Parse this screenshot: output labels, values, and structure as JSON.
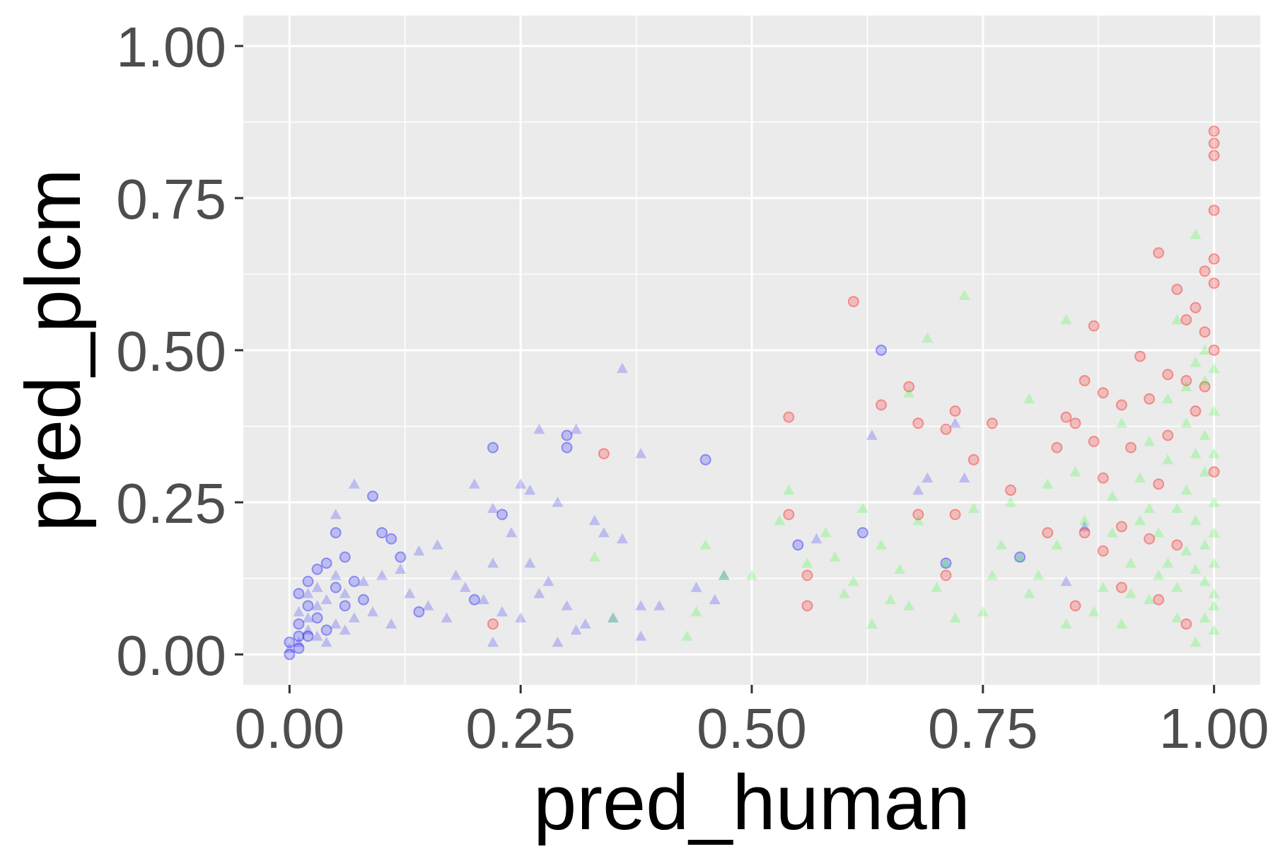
{
  "chart_data": {
    "type": "scatter",
    "title": "",
    "xlabel": "pred_human",
    "ylabel": "pred_plcm",
    "xlim": [
      -0.05,
      1.05
    ],
    "ylim": [
      -0.05,
      1.05
    ],
    "x_ticks": [
      0,
      0.25,
      0.5,
      0.75,
      1
    ],
    "y_ticks": [
      0,
      0.25,
      0.5,
      0.75,
      1
    ],
    "x_tick_labels": [
      "0.00",
      "0.25",
      "0.50",
      "0.75",
      "1.00"
    ],
    "y_tick_labels": [
      "0.00",
      "0.25",
      "0.50",
      "0.75",
      "1.00"
    ],
    "grid": true,
    "legend": "none",
    "series": [
      {
        "marker": "circle",
        "color": "#0000ff",
        "points": [
          [
            0.09,
            0.26
          ],
          [
            0.22,
            0.34
          ],
          [
            0.23,
            0.23
          ],
          [
            0.3,
            0.36
          ],
          [
            0.3,
            0.34
          ],
          [
            0.12,
            0.16
          ],
          [
            0.1,
            0.2
          ],
          [
            0.06,
            0.16
          ],
          [
            0.05,
            0.2
          ],
          [
            0.45,
            0.32
          ],
          [
            0.55,
            0.18
          ],
          [
            0.62,
            0.2
          ],
          [
            0.64,
            0.5
          ],
          [
            0.71,
            0.15
          ],
          [
            0.79,
            0.16
          ],
          [
            0.2,
            0.09
          ],
          [
            0.14,
            0.07
          ],
          [
            0.08,
            0.09
          ],
          [
            0.03,
            0.14
          ],
          [
            0.04,
            0.15
          ],
          [
            0.02,
            0.12
          ],
          [
            0.01,
            0.1
          ],
          [
            0.05,
            0.11
          ],
          [
            0.06,
            0.08
          ],
          [
            0.03,
            0.06
          ],
          [
            0.01,
            0.05
          ],
          [
            0.02,
            0.03
          ],
          [
            0.0,
            0.02
          ],
          [
            0.01,
            0.01
          ],
          [
            0.0,
            0.0
          ],
          [
            0.02,
            0.08
          ],
          [
            0.04,
            0.04
          ],
          [
            0.01,
            0.03
          ],
          [
            0.07,
            0.12
          ],
          [
            0.11,
            0.19
          ]
        ]
      },
      {
        "marker": "triangle",
        "color": "#0000ff",
        "points": [
          [
            0.07,
            0.28
          ],
          [
            0.05,
            0.23
          ],
          [
            0.36,
            0.47
          ],
          [
            0.27,
            0.37
          ],
          [
            0.31,
            0.37
          ],
          [
            0.38,
            0.33
          ],
          [
            0.25,
            0.28
          ],
          [
            0.26,
            0.27
          ],
          [
            0.2,
            0.28
          ],
          [
            0.22,
            0.24
          ],
          [
            0.34,
            0.2
          ],
          [
            0.29,
            0.25
          ],
          [
            0.16,
            0.18
          ],
          [
            0.14,
            0.17
          ],
          [
            0.12,
            0.14
          ],
          [
            0.18,
            0.13
          ],
          [
            0.22,
            0.15
          ],
          [
            0.26,
            0.15
          ],
          [
            0.24,
            0.2
          ],
          [
            0.33,
            0.22
          ],
          [
            0.36,
            0.19
          ],
          [
            0.27,
            0.1
          ],
          [
            0.3,
            0.08
          ],
          [
            0.32,
            0.05
          ],
          [
            0.25,
            0.06
          ],
          [
            0.29,
            0.02
          ],
          [
            0.22,
            0.02
          ],
          [
            0.31,
            0.04
          ],
          [
            0.35,
            0.06
          ],
          [
            0.38,
            0.03
          ],
          [
            0.4,
            0.08
          ],
          [
            0.44,
            0.11
          ],
          [
            0.47,
            0.13
          ],
          [
            0.46,
            0.09
          ],
          [
            0.38,
            0.08
          ],
          [
            0.72,
            0.38
          ],
          [
            0.73,
            0.29
          ],
          [
            0.68,
            0.27
          ],
          [
            0.63,
            0.36
          ],
          [
            0.69,
            0.29
          ],
          [
            0.84,
            0.12
          ],
          [
            0.86,
            0.21
          ],
          [
            0.57,
            0.19
          ],
          [
            0.15,
            0.08
          ],
          [
            0.11,
            0.05
          ],
          [
            0.09,
            0.07
          ],
          [
            0.07,
            0.06
          ],
          [
            0.05,
            0.05
          ],
          [
            0.03,
            0.08
          ],
          [
            0.02,
            0.06
          ],
          [
            0.04,
            0.09
          ],
          [
            0.06,
            0.1
          ],
          [
            0.08,
            0.12
          ],
          [
            0.1,
            0.13
          ],
          [
            0.13,
            0.1
          ],
          [
            0.17,
            0.06
          ],
          [
            0.19,
            0.11
          ],
          [
            0.21,
            0.09
          ],
          [
            0.23,
            0.07
          ],
          [
            0.28,
            0.12
          ],
          [
            0.01,
            0.02
          ],
          [
            0.02,
            0.04
          ],
          [
            0.0,
            0.01
          ],
          [
            0.03,
            0.03
          ],
          [
            0.01,
            0.07
          ],
          [
            0.04,
            0.02
          ],
          [
            0.06,
            0.04
          ],
          [
            0.02,
            0.1
          ],
          [
            0.05,
            0.13
          ],
          [
            0.03,
            0.11
          ]
        ]
      },
      {
        "marker": "circle",
        "color": "#ff0000",
        "points": [
          [
            1.0,
            0.86
          ],
          [
            1.0,
            0.84
          ],
          [
            1.0,
            0.82
          ],
          [
            1.0,
            0.73
          ],
          [
            0.94,
            0.66
          ],
          [
            1.0,
            0.65
          ],
          [
            0.99,
            0.63
          ],
          [
            1.0,
            0.61
          ],
          [
            0.96,
            0.6
          ],
          [
            0.98,
            0.57
          ],
          [
            0.97,
            0.55
          ],
          [
            0.99,
            0.53
          ],
          [
            0.87,
            0.54
          ],
          [
            0.61,
            0.58
          ],
          [
            0.92,
            0.49
          ],
          [
            0.95,
            0.46
          ],
          [
            0.97,
            0.45
          ],
          [
            0.99,
            0.44
          ],
          [
            0.86,
            0.45
          ],
          [
            0.88,
            0.43
          ],
          [
            0.9,
            0.41
          ],
          [
            0.93,
            0.42
          ],
          [
            0.67,
            0.44
          ],
          [
            0.64,
            0.41
          ],
          [
            0.72,
            0.4
          ],
          [
            0.54,
            0.39
          ],
          [
            0.68,
            0.38
          ],
          [
            0.71,
            0.37
          ],
          [
            0.76,
            0.38
          ],
          [
            0.84,
            0.39
          ],
          [
            0.85,
            0.38
          ],
          [
            0.87,
            0.35
          ],
          [
            0.91,
            0.34
          ],
          [
            0.95,
            0.36
          ],
          [
            0.34,
            0.33
          ],
          [
            0.83,
            0.34
          ],
          [
            0.74,
            0.32
          ],
          [
            0.88,
            0.29
          ],
          [
            0.94,
            0.28
          ],
          [
            0.78,
            0.27
          ],
          [
            0.68,
            0.23
          ],
          [
            0.72,
            0.23
          ],
          [
            0.54,
            0.23
          ],
          [
            0.86,
            0.2
          ],
          [
            0.9,
            0.21
          ],
          [
            0.93,
            0.19
          ],
          [
            0.96,
            0.18
          ],
          [
            0.88,
            0.17
          ],
          [
            0.82,
            0.2
          ],
          [
            0.56,
            0.13
          ],
          [
            0.71,
            0.13
          ],
          [
            0.9,
            0.11
          ],
          [
            0.94,
            0.09
          ],
          [
            0.85,
            0.08
          ],
          [
            0.56,
            0.08
          ],
          [
            0.22,
            0.05
          ],
          [
            0.97,
            0.05
          ],
          [
            1.0,
            0.3
          ],
          [
            0.98,
            0.4
          ],
          [
            1.0,
            0.5
          ]
        ]
      },
      {
        "marker": "triangle",
        "color": "#00ff00",
        "points": [
          [
            0.98,
            0.69
          ],
          [
            0.73,
            0.59
          ],
          [
            0.84,
            0.55
          ],
          [
            0.69,
            0.52
          ],
          [
            0.96,
            0.55
          ],
          [
            0.99,
            0.5
          ],
          [
            1.0,
            0.47
          ],
          [
            0.97,
            0.44
          ],
          [
            0.95,
            0.42
          ],
          [
            0.8,
            0.42
          ],
          [
            0.67,
            0.43
          ],
          [
            0.9,
            0.38
          ],
          [
            0.93,
            0.35
          ],
          [
            0.98,
            0.33
          ],
          [
            0.99,
            0.3
          ],
          [
            0.85,
            0.3
          ],
          [
            0.82,
            0.28
          ],
          [
            0.78,
            0.25
          ],
          [
            0.74,
            0.24
          ],
          [
            0.68,
            0.22
          ],
          [
            0.62,
            0.24
          ],
          [
            0.54,
            0.27
          ],
          [
            0.53,
            0.22
          ],
          [
            0.59,
            0.16
          ],
          [
            0.61,
            0.12
          ],
          [
            0.66,
            0.14
          ],
          [
            0.7,
            0.11
          ],
          [
            0.72,
            0.06
          ],
          [
            0.75,
            0.07
          ],
          [
            0.8,
            0.1
          ],
          [
            0.45,
            0.18
          ],
          [
            0.47,
            0.13
          ],
          [
            0.5,
            0.13
          ],
          [
            0.44,
            0.07
          ],
          [
            0.43,
            0.03
          ],
          [
            0.35,
            0.06
          ],
          [
            0.33,
            0.16
          ],
          [
            0.56,
            0.15
          ],
          [
            0.6,
            0.1
          ],
          [
            0.65,
            0.09
          ],
          [
            0.88,
            0.11
          ],
          [
            0.91,
            0.15
          ],
          [
            0.94,
            0.2
          ],
          [
            0.96,
            0.24
          ],
          [
            0.97,
            0.17
          ],
          [
            0.99,
            0.12
          ],
          [
            1.0,
            0.08
          ],
          [
            1.0,
            0.04
          ],
          [
            0.98,
            0.02
          ],
          [
            0.96,
            0.06
          ],
          [
            0.93,
            0.09
          ],
          [
            0.9,
            0.05
          ],
          [
            0.87,
            0.07
          ],
          [
            0.84,
            0.05
          ],
          [
            0.81,
            0.13
          ],
          [
            0.83,
            0.18
          ],
          [
            0.86,
            0.22
          ],
          [
            0.89,
            0.26
          ],
          [
            0.92,
            0.29
          ],
          [
            0.95,
            0.32
          ],
          [
            0.97,
            0.38
          ],
          [
            0.99,
            0.36
          ],
          [
            1.0,
            0.25
          ],
          [
            1.0,
            0.2
          ],
          [
            1.0,
            0.15
          ],
          [
            0.99,
            0.18
          ],
          [
            0.98,
            0.22
          ],
          [
            0.97,
            0.27
          ],
          [
            1.0,
            0.33
          ],
          [
            1.0,
            0.4
          ],
          [
            0.99,
            0.45
          ],
          [
            0.98,
            0.48
          ],
          [
            1.0,
            0.1
          ],
          [
            0.99,
            0.06
          ],
          [
            0.98,
            0.14
          ],
          [
            0.96,
            0.11
          ],
          [
            0.95,
            0.15
          ],
          [
            0.94,
            0.13
          ],
          [
            0.93,
            0.24
          ],
          [
            0.92,
            0.22
          ],
          [
            0.91,
            0.1
          ],
          [
            0.89,
            0.2
          ],
          [
            0.77,
            0.18
          ],
          [
            0.79,
            0.16
          ],
          [
            0.76,
            0.13
          ],
          [
            0.71,
            0.15
          ],
          [
            0.64,
            0.18
          ],
          [
            0.63,
            0.05
          ],
          [
            0.67,
            0.08
          ],
          [
            0.58,
            0.2
          ]
        ]
      }
    ]
  }
}
